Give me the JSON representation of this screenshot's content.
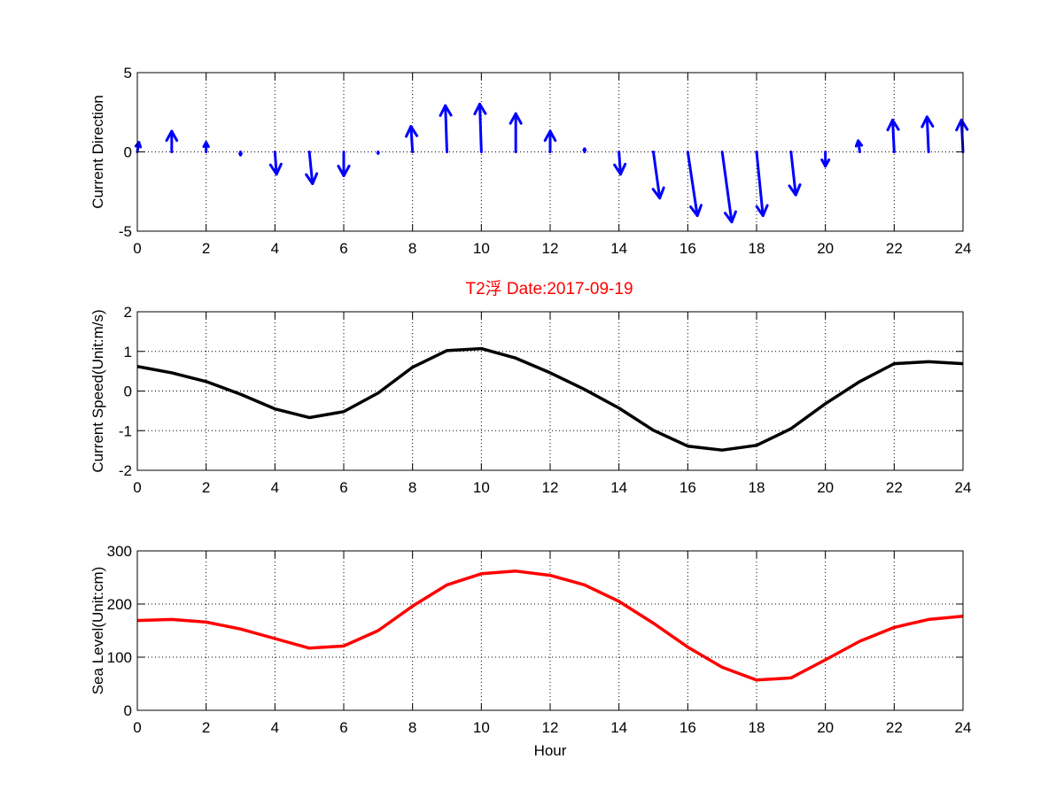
{
  "figure": {
    "title": "T2浮   Date:2017-09-19",
    "title_color": "#ff0000",
    "background": "#ffffff"
  },
  "chart_data": [
    {
      "type": "quiver",
      "ylabel": "Current Direction",
      "xlabel": "",
      "xlim": [
        0,
        24
      ],
      "ylim": [
        -5,
        5
      ],
      "xticks": [
        0,
        2,
        4,
        6,
        8,
        10,
        12,
        14,
        16,
        18,
        20,
        22,
        24
      ],
      "yticks": [
        -5,
        0,
        5
      ],
      "grid": true,
      "color": "#0000ff",
      "x": [
        0,
        1,
        2,
        3,
        4,
        5,
        6,
        7,
        8,
        9,
        10,
        11,
        12,
        13,
        14,
        15,
        16,
        17,
        18,
        19,
        20,
        21,
        22,
        23,
        24
      ],
      "u": [
        0.1,
        0.0,
        0.0,
        0.0,
        0.1,
        0.2,
        0.0,
        0.0,
        -0.1,
        -0.1,
        -0.1,
        0.0,
        0.0,
        0.0,
        0.1,
        0.4,
        0.6,
        0.6,
        0.4,
        0.3,
        0.0,
        -0.1,
        -0.1,
        -0.1,
        -0.1
      ],
      "v": [
        0.6,
        1.3,
        0.6,
        -0.2,
        -1.4,
        -2.0,
        -1.5,
        -0.1,
        1.6,
        2.9,
        3.0,
        2.4,
        1.3,
        0.2,
        -1.4,
        -2.9,
        -4.0,
        -4.4,
        -4.0,
        -2.7,
        -0.9,
        0.7,
        2.0,
        2.2,
        2.0
      ]
    },
    {
      "type": "line",
      "ylabel": "Current Speed(Unit:m/s)",
      "xlabel": "",
      "xlim": [
        0,
        24
      ],
      "ylim": [
        -2,
        2
      ],
      "xticks": [
        0,
        2,
        4,
        6,
        8,
        10,
        12,
        14,
        16,
        18,
        20,
        22,
        24
      ],
      "yticks": [
        -2,
        -1,
        0,
        1,
        2
      ],
      "grid": true,
      "color": "#000000",
      "x": [
        0,
        1,
        2,
        3,
        4,
        5,
        6,
        7,
        8,
        9,
        10,
        11,
        12,
        13,
        14,
        15,
        16,
        17,
        18,
        19,
        20,
        21,
        22,
        23,
        24
      ],
      "y": [
        0.62,
        0.46,
        0.24,
        -0.08,
        -0.45,
        -0.67,
        -0.52,
        -0.05,
        0.6,
        1.02,
        1.07,
        0.83,
        0.46,
        0.04,
        -0.43,
        -0.99,
        -1.39,
        -1.49,
        -1.37,
        -0.95,
        -0.32,
        0.24,
        0.69,
        0.74,
        0.69
      ]
    },
    {
      "type": "line",
      "ylabel": "Sea Level(Unit:cm)",
      "xlabel": "Hour",
      "xlim": [
        0,
        24
      ],
      "ylim": [
        0,
        300
      ],
      "xticks": [
        0,
        2,
        4,
        6,
        8,
        10,
        12,
        14,
        16,
        18,
        20,
        22,
        24
      ],
      "yticks": [
        0,
        100,
        200,
        300
      ],
      "grid": true,
      "color": "#ff0000",
      "x": [
        0,
        1,
        2,
        3,
        4,
        5,
        6,
        7,
        8,
        9,
        10,
        11,
        12,
        13,
        14,
        15,
        16,
        17,
        18,
        19,
        20,
        21,
        22,
        23,
        24
      ],
      "y": [
        169,
        171,
        166,
        153,
        135,
        117,
        121,
        150,
        196,
        236,
        257,
        262,
        254,
        236,
        205,
        164,
        119,
        81,
        57,
        61,
        95,
        130,
        156,
        171,
        177
      ]
    }
  ]
}
